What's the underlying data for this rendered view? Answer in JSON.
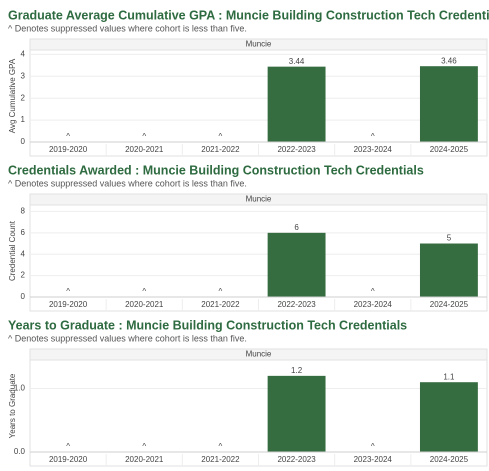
{
  "chart_data": [
    {
      "type": "bar",
      "title": "Graduate Average Cumulative GPA : Muncie Building Construction Tech Credentials",
      "subtitle": "^ Denotes suppressed values where cohort is less than five.",
      "panel_label": "Muncie",
      "y_label": "Avg Cumulative GPA",
      "categories": [
        "2019-2020",
        "2020-2021",
        "2021-2022",
        "2022-2023",
        "2023-2024",
        "2024-2025"
      ],
      "values": [
        null,
        null,
        null,
        3.44,
        null,
        3.46
      ],
      "value_labels": [
        "^",
        "^",
        "^",
        "3.44",
        "^",
        "3.46"
      ],
      "color": "#356c40",
      "ylim": [
        0,
        4.2
      ],
      "yticks": [
        0,
        1,
        2,
        3,
        4
      ],
      "grid": true
    },
    {
      "type": "bar",
      "title": "Credentials Awarded : Muncie Building Construction Tech Credentials",
      "subtitle": "^ Denotes suppressed values where cohort is less than five.",
      "panel_label": "Muncie",
      "y_label": "Credential Count",
      "categories": [
        "2019-2020",
        "2020-2021",
        "2021-2022",
        "2022-2023",
        "2023-2024",
        "2024-2025"
      ],
      "values": [
        null,
        null,
        null,
        6,
        null,
        5
      ],
      "value_labels": [
        "^",
        "^",
        "^",
        "6",
        "^",
        "5"
      ],
      "color": "#356c40",
      "ylim": [
        0,
        8.6
      ],
      "yticks": [
        0,
        2,
        4,
        6,
        8
      ],
      "grid": true
    },
    {
      "type": "bar",
      "title": "Years to Graduate : Muncie Building Construction Tech Credentials",
      "subtitle": "^ Denotes suppressed values where cohort is less than five.",
      "panel_label": "Muncie",
      "y_label": "Years to Graduate",
      "categories": [
        "2019-2020",
        "2020-2021",
        "2021-2022",
        "2022-2023",
        "2023-2024",
        "2024-2025"
      ],
      "values": [
        null,
        null,
        null,
        1.2,
        null,
        1.1
      ],
      "value_labels": [
        "^",
        "^",
        "^",
        "1.2",
        "^",
        "1.1"
      ],
      "color": "#356c40",
      "ylim": [
        0,
        1.45
      ],
      "yticks": [
        {
          "value": 0,
          "label": "0.0"
        },
        {
          "value": 1,
          "label": "1.0"
        }
      ],
      "grid": true
    }
  ]
}
